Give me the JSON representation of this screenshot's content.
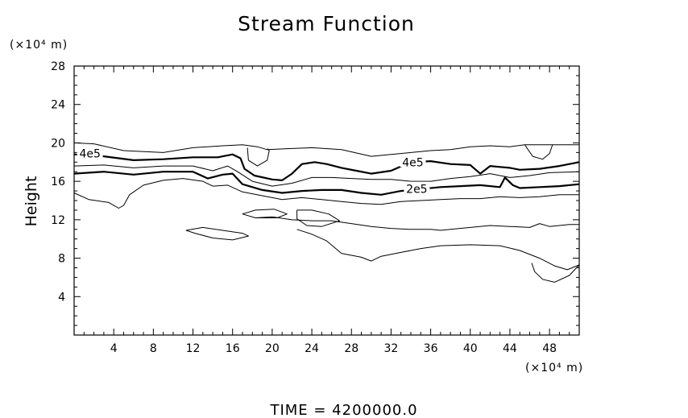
{
  "chart_data": {
    "type": "contour",
    "title": "Stream Function",
    "ylabel": "Height",
    "y_unit": "(×10⁴ m)",
    "x_unit": "(×10⁴ m)",
    "xlabel": "",
    "xlim": [
      0,
      51
    ],
    "ylim": [
      0,
      28
    ],
    "x_ticks": [
      4,
      8,
      12,
      16,
      20,
      24,
      28,
      32,
      36,
      40,
      44,
      48
    ],
    "y_ticks": [
      4,
      8,
      12,
      16,
      20,
      24,
      28
    ],
    "footer": "TIME  =  4200000.0",
    "contour_labels": [
      {
        "text": "4e5",
        "x": 1.6,
        "y": 18.9
      },
      {
        "text": "4e5",
        "x": 34.2,
        "y": 18.0
      },
      {
        "text": "2e5",
        "x": 34.6,
        "y": 15.2
      }
    ],
    "contours": [
      {
        "level": "thin",
        "points": [
          [
            0,
            20.0
          ],
          [
            2,
            19.9
          ],
          [
            5,
            19.2
          ],
          [
            9,
            19.0
          ],
          [
            12,
            19.5
          ],
          [
            15,
            19.7
          ],
          [
            17,
            19.8
          ],
          [
            18.5,
            19.6
          ],
          [
            19.5,
            19.3
          ],
          [
            21.5,
            19.4
          ],
          [
            24,
            19.5
          ],
          [
            27,
            19.3
          ],
          [
            30,
            18.6
          ],
          [
            32,
            18.8
          ],
          [
            34,
            19.0
          ],
          [
            36,
            19.2
          ],
          [
            38,
            19.3
          ],
          [
            40,
            19.6
          ],
          [
            42,
            19.7
          ],
          [
            44,
            19.6
          ],
          [
            45.5,
            19.8
          ],
          [
            51,
            19.8
          ]
        ]
      },
      {
        "level": "thin",
        "points": [
          [
            45.5,
            19.8
          ],
          [
            46.3,
            18.6
          ],
          [
            47.3,
            18.3
          ],
          [
            48,
            18.9
          ],
          [
            48.3,
            19.8
          ]
        ]
      },
      {
        "level": "thin",
        "points": [
          [
            17.5,
            19.5
          ],
          [
            17.6,
            18.2
          ],
          [
            18.5,
            17.6
          ],
          [
            19.5,
            18.2
          ],
          [
            19.7,
            19.2
          ],
          [
            19.5,
            19.4
          ]
        ]
      },
      {
        "level": "thick",
        "label": "4e5",
        "points": [
          [
            0,
            18.8
          ],
          [
            3,
            18.6
          ],
          [
            6,
            18.2
          ],
          [
            9,
            18.3
          ],
          [
            12,
            18.5
          ],
          [
            14.5,
            18.5
          ],
          [
            16,
            18.8
          ],
          [
            16.8,
            18.4
          ],
          [
            17.2,
            17.3
          ],
          [
            18.2,
            16.6
          ],
          [
            20,
            16.2
          ],
          [
            21,
            16.1
          ],
          [
            22,
            16.8
          ],
          [
            23,
            17.8
          ],
          [
            24.3,
            18.0
          ],
          [
            25.5,
            17.8
          ],
          [
            27,
            17.4
          ],
          [
            28.5,
            17.1
          ],
          [
            30,
            16.8
          ],
          [
            32,
            17.1
          ],
          [
            34,
            18.0
          ],
          [
            36,
            18.1
          ],
          [
            38,
            17.8
          ],
          [
            40,
            17.7
          ],
          [
            41,
            16.8
          ],
          [
            42,
            17.6
          ],
          [
            43,
            17.5
          ],
          [
            44,
            17.4
          ],
          [
            45,
            17.2
          ],
          [
            47,
            17.3
          ],
          [
            49,
            17.6
          ],
          [
            51,
            18.0
          ]
        ]
      },
      {
        "level": "thin",
        "points": [
          [
            0,
            17.6
          ],
          [
            3,
            17.7
          ],
          [
            6,
            17.4
          ],
          [
            9,
            17.6
          ],
          [
            12,
            17.6
          ],
          [
            14,
            17.1
          ],
          [
            15.5,
            17.6
          ],
          [
            16.5,
            17.0
          ],
          [
            18,
            16.0
          ],
          [
            20,
            15.5
          ],
          [
            22,
            15.8
          ],
          [
            24,
            16.4
          ],
          [
            26,
            16.4
          ],
          [
            28,
            16.3
          ],
          [
            30,
            16.2
          ],
          [
            32,
            16.2
          ],
          [
            34,
            16.0
          ],
          [
            36,
            16.0
          ],
          [
            38,
            16.3
          ],
          [
            40,
            16.5
          ],
          [
            42,
            16.8
          ],
          [
            44,
            16.4
          ],
          [
            46,
            16.6
          ],
          [
            48,
            16.9
          ],
          [
            51,
            17.0
          ]
        ]
      },
      {
        "level": "thick",
        "label": "2e5",
        "points": [
          [
            0,
            16.8
          ],
          [
            3,
            17.0
          ],
          [
            6,
            16.7
          ],
          [
            9,
            17.0
          ],
          [
            12,
            17.0
          ],
          [
            13.5,
            16.3
          ],
          [
            15,
            16.7
          ],
          [
            16,
            16.8
          ],
          [
            17,
            15.7
          ],
          [
            19,
            15.1
          ],
          [
            21,
            14.8
          ],
          [
            23,
            15.0
          ],
          [
            25,
            15.1
          ],
          [
            27,
            15.1
          ],
          [
            29,
            14.8
          ],
          [
            31,
            14.6
          ],
          [
            33,
            15.0
          ],
          [
            35,
            15.2
          ],
          [
            37,
            15.4
          ],
          [
            39,
            15.5
          ],
          [
            41,
            15.6
          ],
          [
            43,
            15.4
          ],
          [
            43.5,
            16.4
          ],
          [
            44.3,
            15.6
          ],
          [
            45,
            15.3
          ],
          [
            47,
            15.4
          ],
          [
            49,
            15.5
          ],
          [
            51,
            15.7
          ]
        ]
      },
      {
        "level": "thin",
        "points": [
          [
            0,
            14.8
          ],
          [
            1.5,
            14.1
          ],
          [
            3.5,
            13.8
          ],
          [
            4.5,
            13.2
          ],
          [
            5,
            13.5
          ],
          [
            5.6,
            14.6
          ],
          [
            7,
            15.6
          ],
          [
            9,
            16.1
          ],
          [
            11,
            16.3
          ],
          [
            13,
            16.0
          ],
          [
            14,
            15.5
          ],
          [
            15.5,
            15.6
          ],
          [
            17,
            14.9
          ],
          [
            19,
            14.5
          ],
          [
            21,
            14.1
          ],
          [
            23,
            14.3
          ],
          [
            25,
            14.1
          ],
          [
            27,
            13.9
          ],
          [
            29,
            13.7
          ],
          [
            31,
            13.6
          ],
          [
            33,
            13.9
          ],
          [
            35,
            14.0
          ],
          [
            37,
            14.1
          ],
          [
            39,
            14.2
          ],
          [
            41,
            14.2
          ],
          [
            43,
            14.4
          ],
          [
            45,
            14.3
          ],
          [
            47,
            14.4
          ],
          [
            49,
            14.6
          ],
          [
            51,
            14.6
          ]
        ]
      },
      {
        "level": "thin",
        "points": [
          [
            18.3,
            12.2
          ],
          [
            20,
            12.3
          ],
          [
            22,
            12.0
          ],
          [
            24,
            11.9
          ],
          [
            26,
            11.9
          ],
          [
            28,
            11.6
          ],
          [
            30,
            11.3
          ],
          [
            32,
            11.1
          ],
          [
            34,
            11.0
          ],
          [
            36,
            11.0
          ],
          [
            37,
            10.9
          ],
          [
            38,
            11.0
          ],
          [
            40,
            11.2
          ],
          [
            42,
            11.4
          ],
          [
            44,
            11.3
          ],
          [
            46,
            11.2
          ],
          [
            47,
            11.6
          ],
          [
            48,
            11.3
          ],
          [
            50,
            11.5
          ],
          [
            51,
            11.5
          ]
        ]
      },
      {
        "level": "thin",
        "points": [
          [
            11.3,
            10.9
          ],
          [
            13,
            11.2
          ],
          [
            15,
            10.9
          ],
          [
            17,
            10.6
          ],
          [
            17.6,
            10.3
          ],
          [
            16,
            9.9
          ],
          [
            14,
            10.1
          ],
          [
            12.2,
            10.6
          ],
          [
            11.3,
            10.9
          ]
        ]
      },
      {
        "level": "thin",
        "points": [
          [
            18.3,
            12.2
          ],
          [
            17,
            12.6
          ],
          [
            18.3,
            13.0
          ],
          [
            20.2,
            13.1
          ],
          [
            21.5,
            12.6
          ],
          [
            20.5,
            12.2
          ],
          [
            18.3,
            12.2
          ]
        ]
      },
      {
        "level": "thin",
        "points": [
          [
            22.5,
            13.0
          ],
          [
            24,
            13.0
          ],
          [
            25.7,
            12.6
          ],
          [
            26.8,
            11.9
          ],
          [
            25,
            11.3
          ],
          [
            23.5,
            11.4
          ],
          [
            22.5,
            12.1
          ],
          [
            22.5,
            13.0
          ]
        ]
      },
      {
        "level": "thin",
        "points": [
          [
            22.5,
            11.0
          ],
          [
            24,
            10.5
          ],
          [
            25.5,
            9.8
          ],
          [
            27,
            8.5
          ],
          [
            29,
            8.1
          ],
          [
            30,
            7.7
          ],
          [
            31,
            8.2
          ],
          [
            33,
            8.6
          ],
          [
            35,
            9.0
          ],
          [
            37,
            9.3
          ],
          [
            40,
            9.4
          ],
          [
            43,
            9.3
          ],
          [
            45,
            8.8
          ],
          [
            47,
            8.0
          ],
          [
            48.5,
            7.2
          ],
          [
            49.8,
            6.8
          ],
          [
            51,
            7.3
          ]
        ]
      },
      {
        "level": "thin",
        "points": [
          [
            51,
            7.3
          ],
          [
            50,
            6.2
          ],
          [
            48.5,
            5.5
          ],
          [
            47.3,
            5.8
          ],
          [
            46.5,
            6.6
          ],
          [
            46.2,
            7.5
          ]
        ]
      }
    ]
  }
}
